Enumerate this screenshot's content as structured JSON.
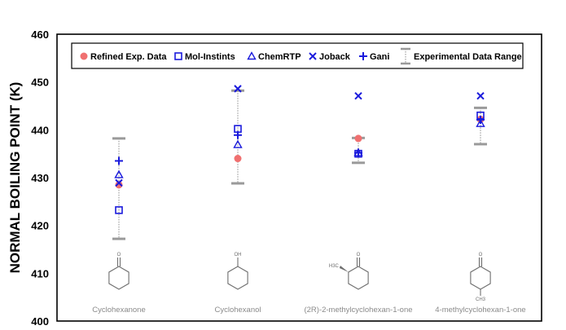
{
  "chart_data": {
    "type": "scatter",
    "ylabel": "NORMAL BOILING POINT (K)",
    "ylim": [
      400,
      460
    ],
    "yticks": [
      400,
      410,
      420,
      430,
      440,
      450,
      460
    ],
    "categories": [
      "Cyclohexanone",
      "Cyclohexanol",
      "(2R)-2-methylcyclohexan-1-one",
      "4-methylcyclohexan-1-one"
    ],
    "series": [
      {
        "name": "Refined Exp. Data",
        "marker": "circle",
        "color": "#f07070",
        "values": [
          428.5,
          434.0,
          438.2,
          442.2
        ]
      },
      {
        "name": "Mol-Instints",
        "marker": "square",
        "color": "#1a1adc",
        "values": [
          423.2,
          440.2,
          435.0,
          443.0
        ]
      },
      {
        "name": "ChemRTP",
        "marker": "triangle",
        "color": "#1a1adc",
        "values": [
          430.6,
          436.9,
          435.2,
          441.3
        ]
      },
      {
        "name": "Joback",
        "marker": "x",
        "color": "#1a1adc",
        "values": [
          428.9,
          448.6,
          447.1,
          447.1
        ]
      },
      {
        "name": "Gani",
        "marker": "plus",
        "color": "#1a1adc",
        "values": [
          433.5,
          438.9,
          435.2,
          442.1
        ]
      }
    ],
    "range_series": {
      "name": "Experimental Data Range",
      "color": "#9a9a9a",
      "low": [
        417.2,
        428.8,
        433.1,
        437.0
      ],
      "high": [
        438.2,
        448.2,
        438.3,
        444.6
      ]
    },
    "grid": false,
    "legend_position": "top"
  },
  "molecules": {
    "oh_label": "OH",
    "o_label": "O",
    "h3c_label": "H3C",
    "ch3_label": "CH3"
  }
}
